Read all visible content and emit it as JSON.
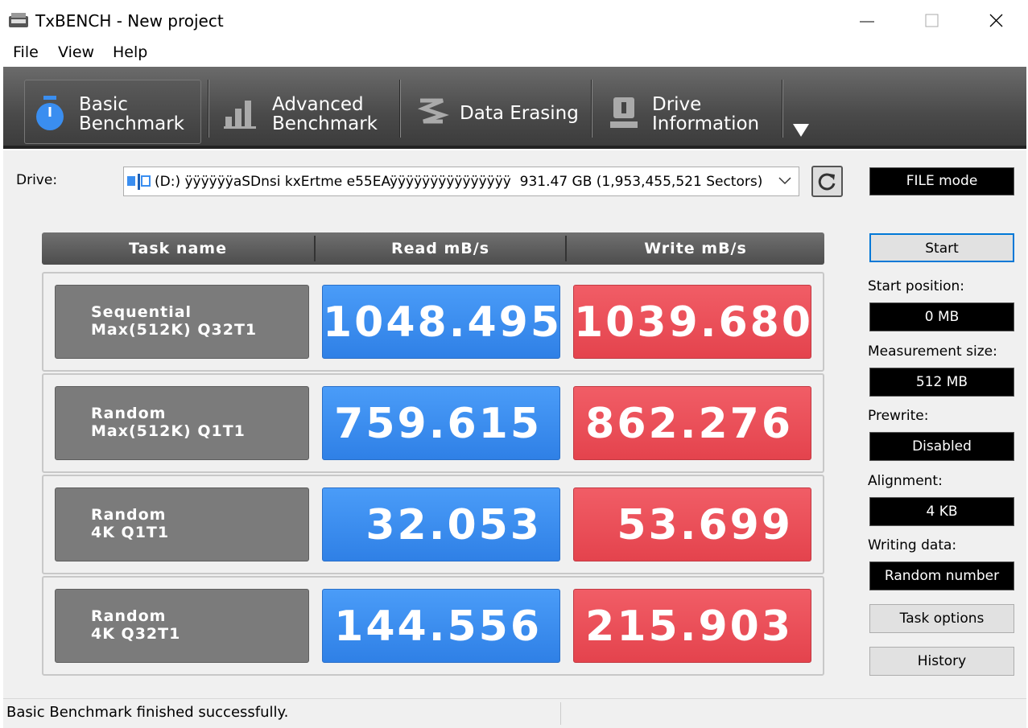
{
  "window": {
    "title": "TxBENCH - New project"
  },
  "menu": [
    "File",
    "View",
    "Help"
  ],
  "tabs": [
    {
      "lines": [
        "Basic",
        "Benchmark"
      ]
    },
    {
      "lines": [
        "Advanced",
        "Benchmark"
      ]
    },
    {
      "lines": [
        "Data Erasing"
      ]
    },
    {
      "lines": [
        "Drive",
        "Information"
      ]
    }
  ],
  "drive": {
    "label": "Drive:",
    "value": "(D:) ÿÿÿÿÿÿaSDnsi kxErtme e55EAÿÿÿÿÿÿÿÿÿÿÿÿÿÿÿ  931.47 GB (1,953,455,521 Sectors)"
  },
  "mode": "FILE mode",
  "table": {
    "headers": [
      "Task name",
      "Read mB/s",
      "Write mB/s"
    ],
    "rows": [
      {
        "name": [
          "Sequential",
          "Max(512K) Q32T1"
        ],
        "read": "1048.495",
        "write": "1039.680"
      },
      {
        "name": [
          "Random",
          "Max(512K) Q1T1"
        ],
        "read": "759.615",
        "write": "862.276"
      },
      {
        "name": [
          "Random",
          "4K Q1T1"
        ],
        "read": "32.053",
        "write": "53.699"
      },
      {
        "name": [
          "Random",
          "4K Q32T1"
        ],
        "read": "144.556",
        "write": "215.903"
      }
    ]
  },
  "start_button": "Start",
  "settings": [
    {
      "label": "Start position:",
      "value": "0 MB"
    },
    {
      "label": "Measurement size:",
      "value": "512 MB"
    },
    {
      "label": "Prewrite:",
      "value": "Disabled"
    },
    {
      "label": "Alignment:",
      "value": "4 KB"
    },
    {
      "label": "Writing data:",
      "value": "Random number"
    }
  ],
  "buttons": [
    "Task options",
    "History"
  ],
  "status": "Basic Benchmark finished successfully."
}
